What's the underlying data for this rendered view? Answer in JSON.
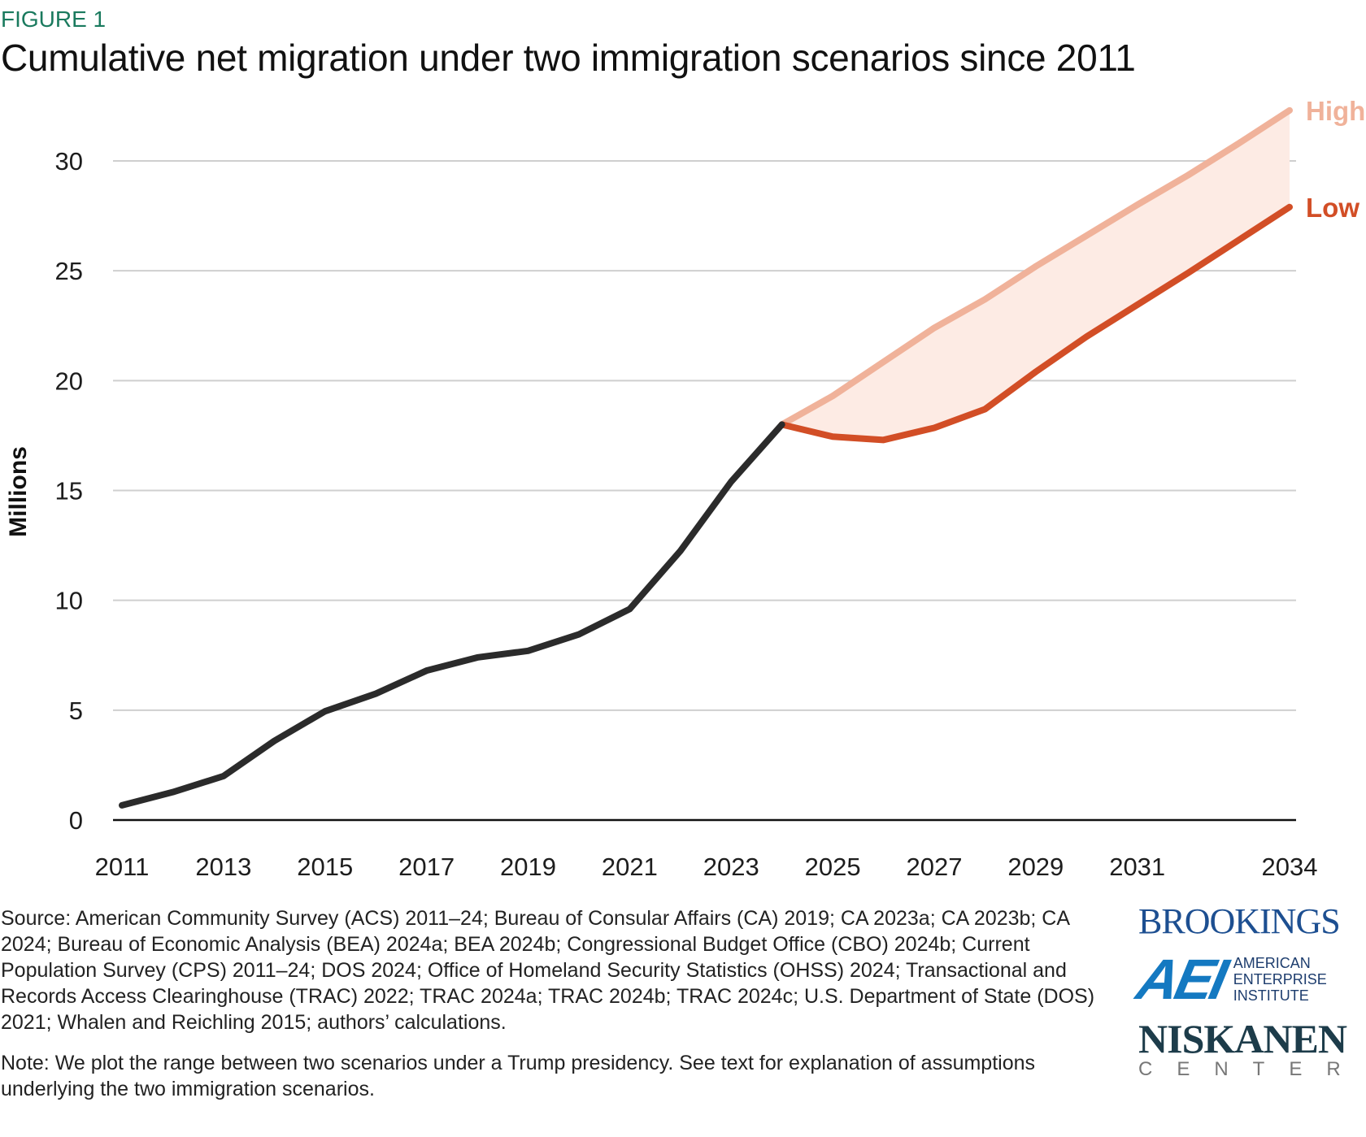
{
  "figure_label": "FIGURE 1",
  "title": "Cumulative net migration under two immigration scenarios since 2011",
  "chart_data": {
    "type": "line",
    "ylabel": "Millions",
    "xlabel": "",
    "ylim": [
      0,
      30
    ],
    "yticks": [
      0,
      5,
      10,
      15,
      20,
      25,
      30
    ],
    "xticks": [
      2011,
      2013,
      2015,
      2017,
      2019,
      2021,
      2023,
      2025,
      2027,
      2029,
      2031,
      2034
    ],
    "grid": true,
    "historical": {
      "x": [
        2011,
        2012,
        2013,
        2014,
        2015,
        2016,
        2017,
        2018,
        2019,
        2020,
        2021,
        2022,
        2023,
        2024
      ],
      "values": [
        0.67,
        1.27,
        2.0,
        3.6,
        4.95,
        5.75,
        6.8,
        7.4,
        7.7,
        8.45,
        9.6,
        12.25,
        15.4,
        18.0
      ],
      "color": "#2b2b2b"
    },
    "series": [
      {
        "name": "High",
        "x": [
          2024,
          2025,
          2026,
          2027,
          2028,
          2029,
          2030,
          2031,
          2032,
          2033,
          2034
        ],
        "values": [
          18.0,
          19.3,
          20.85,
          22.4,
          23.7,
          25.2,
          26.6,
          28.0,
          29.35,
          30.8,
          32.3
        ],
        "color": "#f0b29a"
      },
      {
        "name": "Low",
        "x": [
          2024,
          2025,
          2026,
          2027,
          2028,
          2029,
          2030,
          2031,
          2032,
          2033,
          2034
        ],
        "values": [
          18.0,
          17.45,
          17.3,
          17.85,
          18.7,
          20.4,
          22.0,
          23.45,
          24.9,
          26.4,
          27.9
        ],
        "color": "#d24e26"
      }
    ],
    "band_color": "#fdebe4"
  },
  "source": "Source: American Community Survey (ACS) 2011–24; Bureau of Consular Affairs (CA) 2019; CA 2023a; CA 2023b; CA 2024; Bureau of Economic Analysis (BEA) 2024a; BEA 2024b; Congressional Budget Office (CBO) 2024b; Current Population Survey (CPS) 2011–24; DOS 2024; Office of Homeland Security Statistics (OHSS) 2024; Transactional and Records Access Clearinghouse (TRAC) 2022; TRAC 2024a; TRAC 2024b; TRAC 2024c; U.S. Department of State (DOS) 2021; Whalen and Reichling 2015; authors’ calculations.",
  "note": "Note: We plot the range between two scenarios under a Trump presidency. See text for explanation of assumptions underlying the two immigration scenarios.",
  "logos": {
    "brookings": "BROOKINGS",
    "aei_mark": "AEI",
    "aei_text": [
      "AMERICAN",
      "ENTERPRISE",
      "INSTITUTE"
    ],
    "niskanen": "NISKANEN",
    "niskanen_sub": "CENTER"
  }
}
